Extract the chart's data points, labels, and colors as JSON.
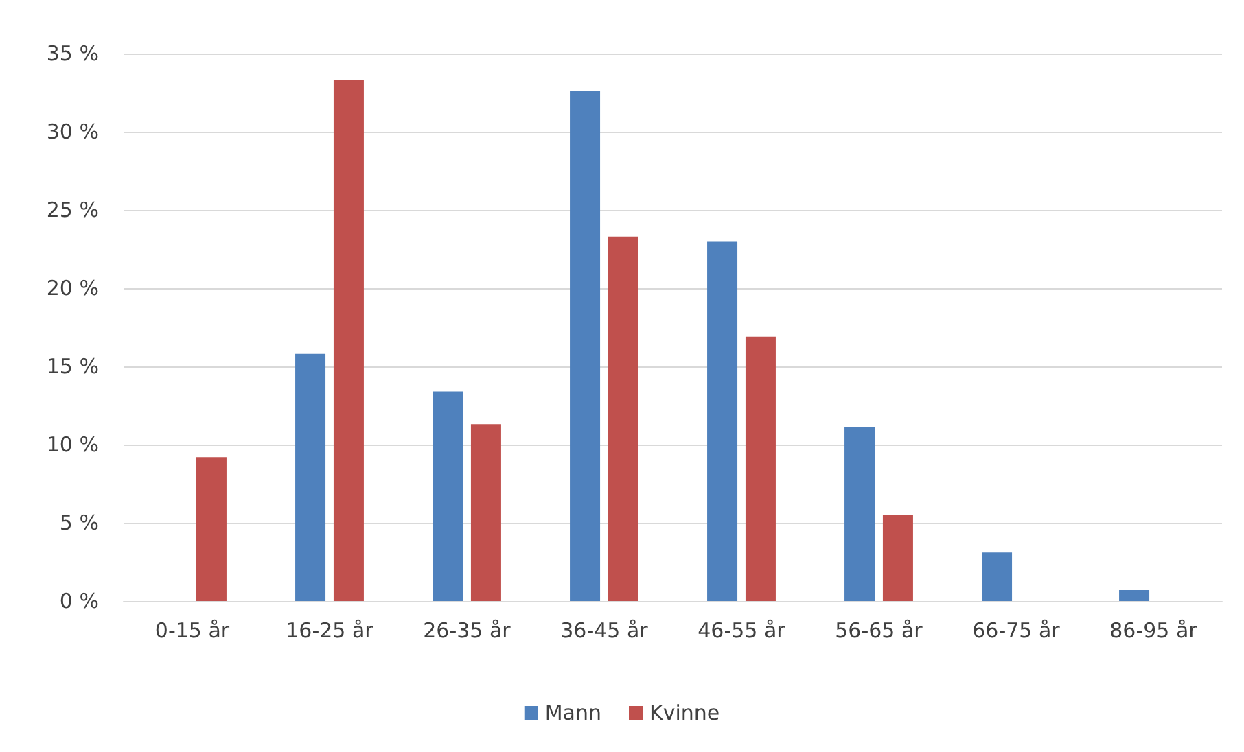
{
  "chart_data": {
    "type": "bar",
    "categories": [
      "0-15 år",
      "16-25 år",
      "26-35 år",
      "36-45 år",
      "46-55 år",
      "56-65 år",
      "66-75 år",
      "86-95 år"
    ],
    "series": [
      {
        "name": "Mann",
        "color": "#4f81bd",
        "values": [
          0,
          15.8,
          13.4,
          32.6,
          23.0,
          11.1,
          3.1,
          0.7
        ]
      },
      {
        "name": "Kvinne",
        "color": "#c0504d",
        "values": [
          9.2,
          33.3,
          11.3,
          23.3,
          16.9,
          5.5,
          0,
          0
        ]
      }
    ],
    "ylim": [
      0,
      35
    ],
    "yticks": [
      {
        "value": 0,
        "label": "0 %"
      },
      {
        "value": 5,
        "label": "5 %"
      },
      {
        "value": 10,
        "label": "10 %"
      },
      {
        "value": 15,
        "label": "15 %"
      },
      {
        "value": 20,
        "label": "20 %"
      },
      {
        "value": 25,
        "label": "25 %"
      },
      {
        "value": 30,
        "label": "30 %"
      },
      {
        "value": 35,
        "label": "35 %"
      }
    ],
    "grid": "y",
    "legend": "bottom"
  }
}
